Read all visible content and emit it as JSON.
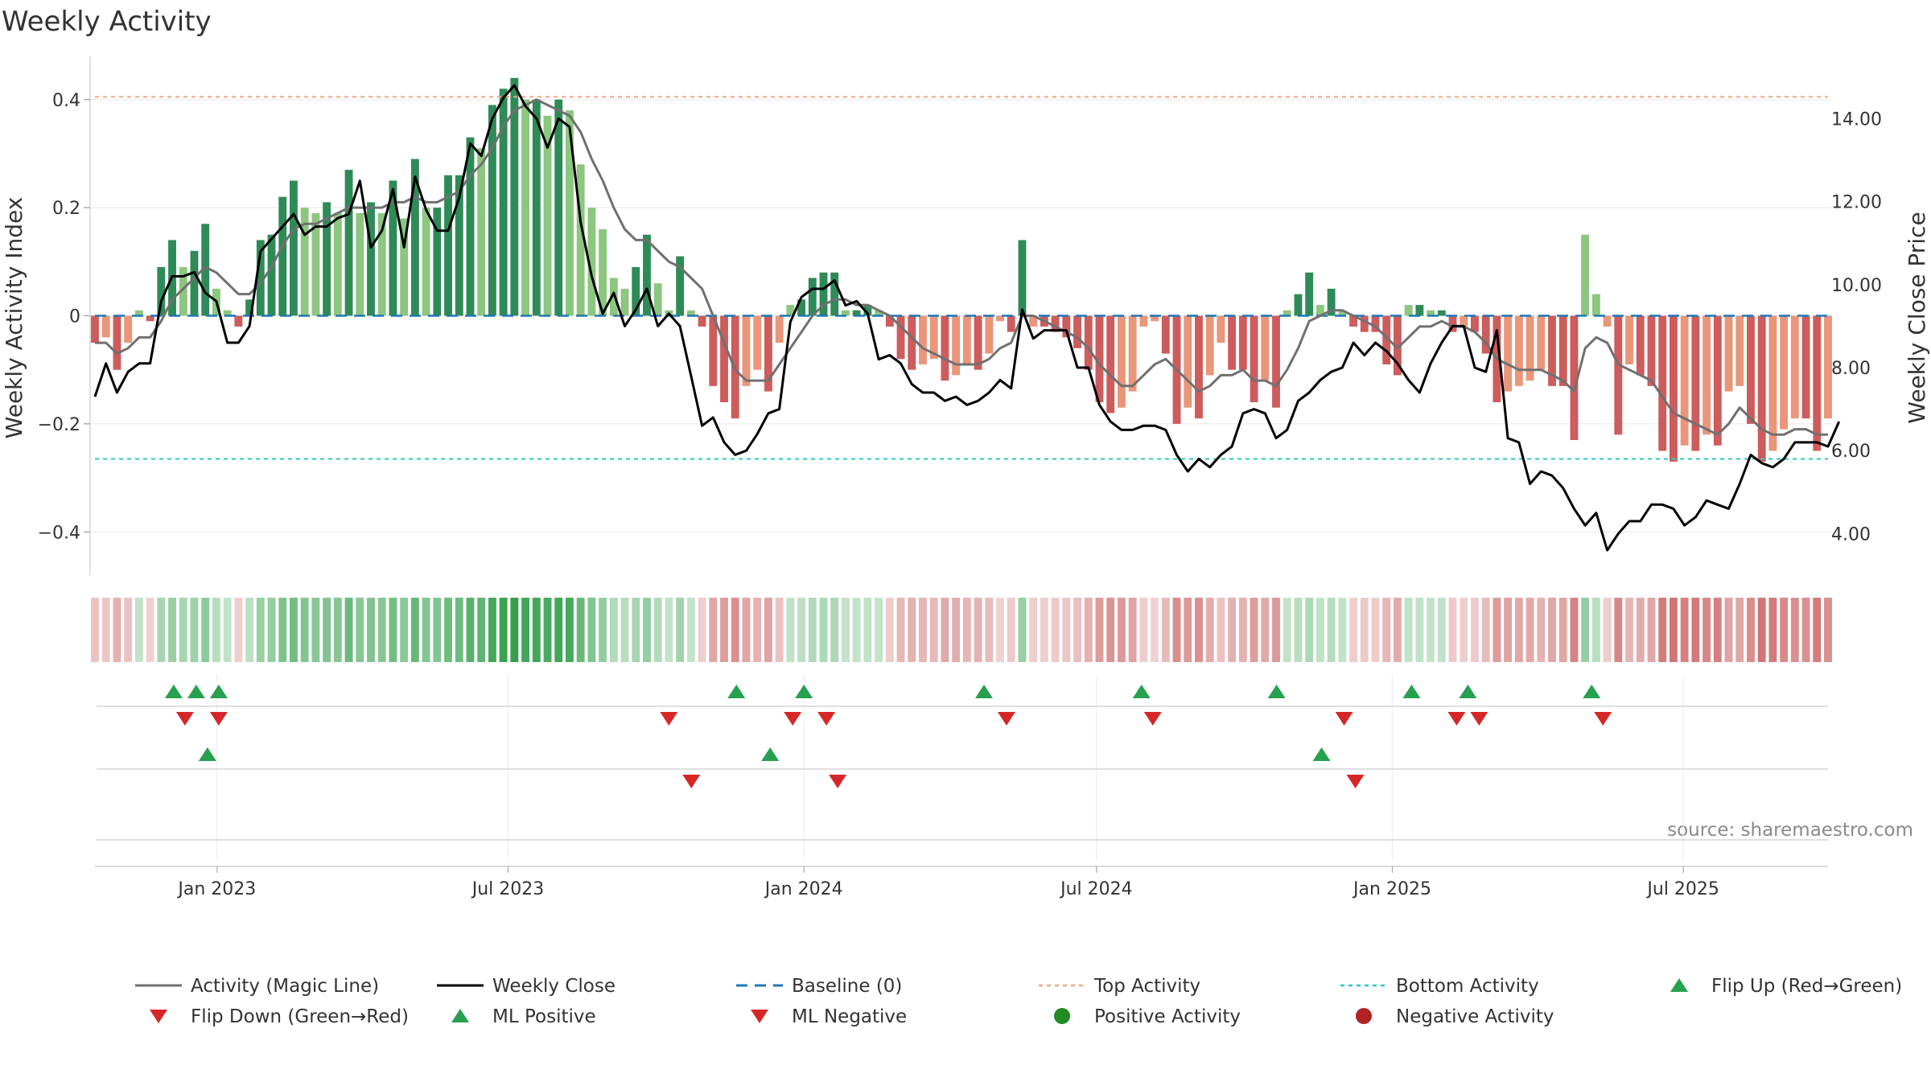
{
  "chart_data": {
    "type": "bar",
    "title": "Weekly Activity",
    "ylabel_left": "Weekly Activity Index",
    "ylabel_right": "Weekly Close Price",
    "ylim_left": [
      -0.48,
      0.48
    ],
    "ylim_right": [
      3.0,
      15.5
    ],
    "yticks_left": [
      {
        "value": 0.4,
        "label": "0.4"
      },
      {
        "value": 0.2,
        "label": "0.2"
      },
      {
        "value": 0,
        "label": "0"
      },
      {
        "value": -0.2,
        "label": "−0.2"
      },
      {
        "value": -0.4,
        "label": "−0.4"
      }
    ],
    "yticks_right": [
      {
        "value": 14,
        "label": "14.00"
      },
      {
        "value": 12,
        "label": "12.00"
      },
      {
        "value": 10,
        "label": "10.00"
      },
      {
        "value": 8,
        "label": "8.00"
      },
      {
        "value": 6,
        "label": "6.00"
      },
      {
        "value": 4,
        "label": "4.00"
      }
    ],
    "x_start": "2022-10-17",
    "x_end": "2025-09-29",
    "xticks": [
      {
        "date": "2023-01-01",
        "label": "Jan 2023"
      },
      {
        "date": "2023-07-01",
        "label": "Jul 2023"
      },
      {
        "date": "2024-01-01",
        "label": "Jan 2024"
      },
      {
        "date": "2024-07-01",
        "label": "Jul 2024"
      },
      {
        "date": "2025-01-01",
        "label": "Jan 2025"
      },
      {
        "date": "2025-07-01",
        "label": "Jul 2025"
      }
    ],
    "top_activity": 0.405,
    "bottom_activity": -0.265,
    "baseline": 0,
    "activity_weekly": [
      -0.05,
      -0.04,
      -0.1,
      -0.05,
      0.01,
      -0.01,
      0.09,
      0.14,
      0.09,
      0.12,
      0.17,
      0.05,
      0.01,
      -0.02,
      0.03,
      0.14,
      0.15,
      0.22,
      0.25,
      0.2,
      0.19,
      0.21,
      0.19,
      0.27,
      0.19,
      0.21,
      0.19,
      0.25,
      0.18,
      0.29,
      0.2,
      0.2,
      0.26,
      0.26,
      0.33,
      0.31,
      0.39,
      0.42,
      0.44,
      0.4,
      0.4,
      0.37,
      0.4,
      0.38,
      0.28,
      0.2,
      0.16,
      0.07,
      0.05,
      0.09,
      0.15,
      0.06,
      0.01,
      0.11,
      0.01,
      -0.02,
      -0.13,
      -0.16,
      -0.19,
      -0.13,
      -0.1,
      -0.14,
      -0.05,
      0.02,
      0.03,
      0.07,
      0.08,
      0.08,
      0.01,
      0.01,
      0.02,
      0.01,
      -0.02,
      -0.08,
      -0.1,
      -0.09,
      -0.08,
      -0.12,
      -0.11,
      -0.09,
      -0.1,
      -0.07,
      -0.01,
      -0.03,
      0.14,
      -0.02,
      -0.02,
      -0.03,
      -0.04,
      -0.06,
      -0.1,
      -0.16,
      -0.18,
      -0.17,
      -0.14,
      -0.02,
      -0.01,
      -0.07,
      -0.2,
      -0.17,
      -0.19,
      -0.11,
      -0.05,
      -0.1,
      -0.1,
      -0.16,
      -0.12,
      -0.17,
      0.01,
      0.04,
      0.08,
      0.02,
      0.05,
      0.01,
      -0.02,
      -0.03,
      -0.03,
      -0.09,
      -0.11,
      0.02,
      0.02,
      0.01,
      0.01,
      -0.03,
      -0.02,
      -0.03,
      -0.07,
      -0.16,
      -0.14,
      -0.13,
      -0.12,
      -0.1,
      -0.13,
      -0.13,
      -0.23,
      0.15,
      0.04,
      -0.02,
      -0.22,
      -0.09,
      -0.11,
      -0.13,
      -0.25,
      -0.27,
      -0.24,
      -0.25,
      -0.22,
      -0.24,
      -0.14,
      -0.13,
      -0.2,
      -0.27,
      -0.25,
      -0.21,
      -0.19,
      -0.19,
      -0.25,
      -0.19
    ],
    "activity_magic_line": [
      -0.05,
      -0.05,
      -0.07,
      -0.06,
      -0.04,
      -0.04,
      -0.01,
      0.03,
      0.05,
      0.07,
      0.09,
      0.08,
      0.06,
      0.04,
      0.04,
      0.06,
      0.09,
      0.13,
      0.16,
      0.17,
      0.17,
      0.18,
      0.19,
      0.2,
      0.2,
      0.2,
      0.2,
      0.21,
      0.21,
      0.22,
      0.21,
      0.21,
      0.22,
      0.23,
      0.26,
      0.28,
      0.31,
      0.35,
      0.38,
      0.39,
      0.4,
      0.39,
      0.38,
      0.37,
      0.34,
      0.29,
      0.25,
      0.2,
      0.16,
      0.14,
      0.14,
      0.12,
      0.1,
      0.09,
      0.07,
      0.05,
      0.0,
      -0.05,
      -0.1,
      -0.12,
      -0.12,
      -0.12,
      -0.09,
      -0.06,
      -0.03,
      0.0,
      0.02,
      0.03,
      0.03,
      0.02,
      0.02,
      0.01,
      0.0,
      -0.02,
      -0.04,
      -0.06,
      -0.07,
      -0.08,
      -0.09,
      -0.09,
      -0.09,
      -0.08,
      -0.06,
      -0.05,
      0.0,
      0.0,
      -0.01,
      -0.02,
      -0.03,
      -0.04,
      -0.06,
      -0.09,
      -0.11,
      -0.13,
      -0.13,
      -0.11,
      -0.09,
      -0.08,
      -0.1,
      -0.12,
      -0.14,
      -0.13,
      -0.11,
      -0.11,
      -0.1,
      -0.12,
      -0.12,
      -0.13,
      -0.1,
      -0.06,
      -0.01,
      0.0,
      0.01,
      0.01,
      0.0,
      -0.01,
      -0.02,
      -0.04,
      -0.06,
      -0.04,
      -0.02,
      -0.02,
      -0.01,
      -0.02,
      -0.02,
      -0.03,
      -0.05,
      -0.08,
      -0.09,
      -0.1,
      -0.1,
      -0.1,
      -0.11,
      -0.12,
      -0.14,
      -0.06,
      -0.04,
      -0.05,
      -0.09,
      -0.1,
      -0.11,
      -0.12,
      -0.15,
      -0.18,
      -0.19,
      -0.2,
      -0.21,
      -0.22,
      -0.2,
      -0.17,
      -0.19,
      -0.21,
      -0.22,
      -0.22,
      -0.21,
      -0.21,
      -0.22,
      -0.22
    ],
    "weekly_close": [
      7.3,
      8.1,
      7.4,
      7.9,
      8.1,
      8.1,
      9.6,
      10.2,
      10.2,
      10.3,
      9.8,
      9.6,
      8.6,
      8.6,
      9.0,
      10.8,
      11.1,
      11.4,
      11.7,
      11.2,
      11.4,
      11.4,
      11.6,
      11.7,
      12.5,
      10.9,
      11.3,
      12.3,
      10.9,
      12.6,
      11.8,
      11.3,
      11.3,
      12.1,
      13.4,
      13.1,
      14.0,
      14.5,
      14.8,
      14.3,
      14.0,
      13.3,
      14.0,
      13.8,
      11.5,
      10.2,
      9.3,
      9.8,
      9.0,
      9.4,
      9.9,
      9.0,
      9.3,
      9.0,
      7.8,
      6.6,
      6.8,
      6.2,
      5.9,
      6.0,
      6.4,
      6.9,
      7.0,
      9.1,
      9.7,
      9.9,
      9.9,
      10.1,
      9.5,
      9.6,
      9.3,
      8.2,
      8.3,
      8.1,
      7.6,
      7.4,
      7.4,
      7.2,
      7.3,
      7.1,
      7.2,
      7.4,
      7.7,
      7.5,
      9.4,
      8.7,
      8.9,
      8.9,
      8.9,
      8.0,
      8.0,
      7.1,
      6.7,
      6.5,
      6.5,
      6.6,
      6.6,
      6.5,
      5.9,
      5.5,
      5.8,
      5.6,
      5.9,
      6.1,
      6.9,
      7.0,
      6.9,
      6.3,
      6.5,
      7.2,
      7.4,
      7.7,
      7.9,
      8.0,
      8.6,
      8.3,
      8.6,
      8.4,
      8.1,
      7.7,
      7.4,
      8.1,
      8.6,
      9.0,
      9.0,
      8.0,
      7.9,
      8.9,
      6.3,
      6.2,
      5.2,
      5.5,
      5.4,
      5.1,
      4.6,
      4.2,
      4.5,
      3.6,
      4.0,
      4.3,
      4.3,
      4.7,
      4.7,
      4.6,
      4.2,
      4.4,
      4.8,
      4.7,
      4.6,
      5.2,
      5.9,
      5.7,
      5.6,
      5.8,
      6.2,
      6.2,
      6.2,
      6.1,
      6.7
    ],
    "events": {
      "flip_up_dates": [
        "2022-12-05",
        "2022-12-19",
        "2023-01-02",
        "2023-11-20",
        "2024-01-01",
        "2024-04-22",
        "2024-07-29",
        "2024-10-21",
        "2025-01-13",
        "2025-02-17",
        "2025-05-05"
      ],
      "flip_down_dates": [
        "2022-12-12",
        "2023-01-02",
        "2023-10-09",
        "2023-12-25",
        "2024-01-15",
        "2024-05-06",
        "2024-08-05",
        "2024-12-02",
        "2025-02-10",
        "2025-02-24",
        "2025-05-12"
      ],
      "ml_positive_dates": [
        "2022-12-26",
        "2023-12-11",
        "2024-11-18"
      ],
      "ml_negative_dates": [
        "2023-10-23",
        "2024-01-22",
        "2024-12-09"
      ]
    },
    "legend": [
      {
        "key": "magic",
        "label": "Activity (Magic Line)"
      },
      {
        "key": "close",
        "label": "Weekly Close"
      },
      {
        "key": "baseline",
        "label": "Baseline (0)"
      },
      {
        "key": "top",
        "label": "Top Activity"
      },
      {
        "key": "bottom",
        "label": "Bottom Activity"
      },
      {
        "key": "flipup",
        "label": "Flip Up (Red→Green)"
      },
      {
        "key": "flipdown",
        "label": "Flip Down (Green→Red)"
      },
      {
        "key": "mlpos",
        "label": "ML Positive"
      },
      {
        "key": "mlneg",
        "label": "ML Negative"
      },
      {
        "key": "posact",
        "label": "Positive Activity"
      },
      {
        "key": "negact",
        "label": "Negative Activity"
      }
    ],
    "legend_placement": "bottom"
  },
  "source": "source: sharemaestro.com",
  "colors": {
    "pos_strong": "#2e8b57",
    "pos_light": "#8cc67f",
    "neg_strong": "#cd5c5c",
    "neg_light": "#e9967a",
    "magic_line": "#707070",
    "close_line": "#000000",
    "baseline": "#1f77b4",
    "top_line": "#f4a582",
    "bottom_line": "#2ac8c8",
    "up_marker": "#27a04f",
    "down_marker": "#d62728",
    "pos_dot": "#228b22",
    "neg_dot": "#b22222"
  }
}
